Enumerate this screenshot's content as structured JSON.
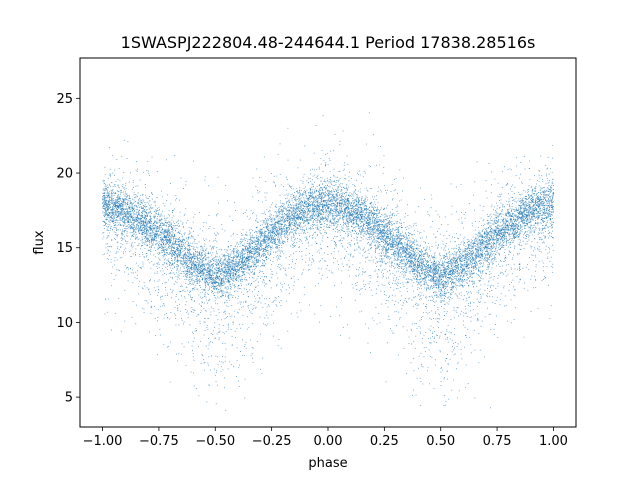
{
  "chart_data": {
    "type": "scatter",
    "title": "1SWASPJ222804.48-244644.1 Period 17838.28516s",
    "xlabel": "phase",
    "ylabel": "flux",
    "xlim": [
      -1.1,
      1.1
    ],
    "ylim": [
      3.0,
      27.7
    ],
    "x_ticks": [
      -1.0,
      -0.75,
      -0.5,
      -0.25,
      0.0,
      0.25,
      0.5,
      0.75,
      1.0
    ],
    "x_tick_labels": [
      "−1.00",
      "−0.75",
      "−0.50",
      "−0.25",
      "0.00",
      "0.25",
      "0.50",
      "0.75",
      "1.00"
    ],
    "y_ticks": [
      5,
      10,
      15,
      20,
      25
    ],
    "y_tick_labels": [
      "5",
      "10",
      "15",
      "20",
      "25"
    ],
    "grid": false,
    "legend": "none",
    "series": [
      {
        "marker_color": "#1f77b4",
        "x": [
          -1.0,
          -0.9,
          -0.8,
          -0.7,
          -0.6,
          -0.5,
          -0.4,
          -0.3,
          -0.2,
          -0.1,
          0.0,
          0.1,
          0.2,
          0.3,
          0.4,
          0.5,
          0.6,
          0.7,
          0.8,
          0.9,
          1.0
        ],
        "y": [
          17.9,
          17.4,
          16.6,
          15.4,
          14.0,
          13.0,
          13.8,
          15.2,
          16.6,
          17.6,
          18.0,
          17.6,
          16.6,
          15.3,
          13.9,
          13.0,
          13.8,
          15.3,
          16.6,
          17.5,
          17.9
        ],
        "scatter_lower": [
          2.6,
          2.7,
          3.0,
          3.4,
          3.6,
          3.8,
          3.6,
          3.3,
          3.0,
          2.8,
          2.7,
          2.8,
          3.0,
          3.3,
          3.6,
          3.8,
          3.6,
          3.4,
          3.0,
          2.7,
          2.6
        ],
        "scatter_upper": [
          1.9,
          1.9,
          2.1,
          2.2,
          2.3,
          2.4,
          2.3,
          2.2,
          2.1,
          1.9,
          1.9,
          1.9,
          2.1,
          2.2,
          2.3,
          2.4,
          2.3,
          2.2,
          2.1,
          1.9,
          1.9
        ],
        "point_count": 14000
      }
    ]
  }
}
